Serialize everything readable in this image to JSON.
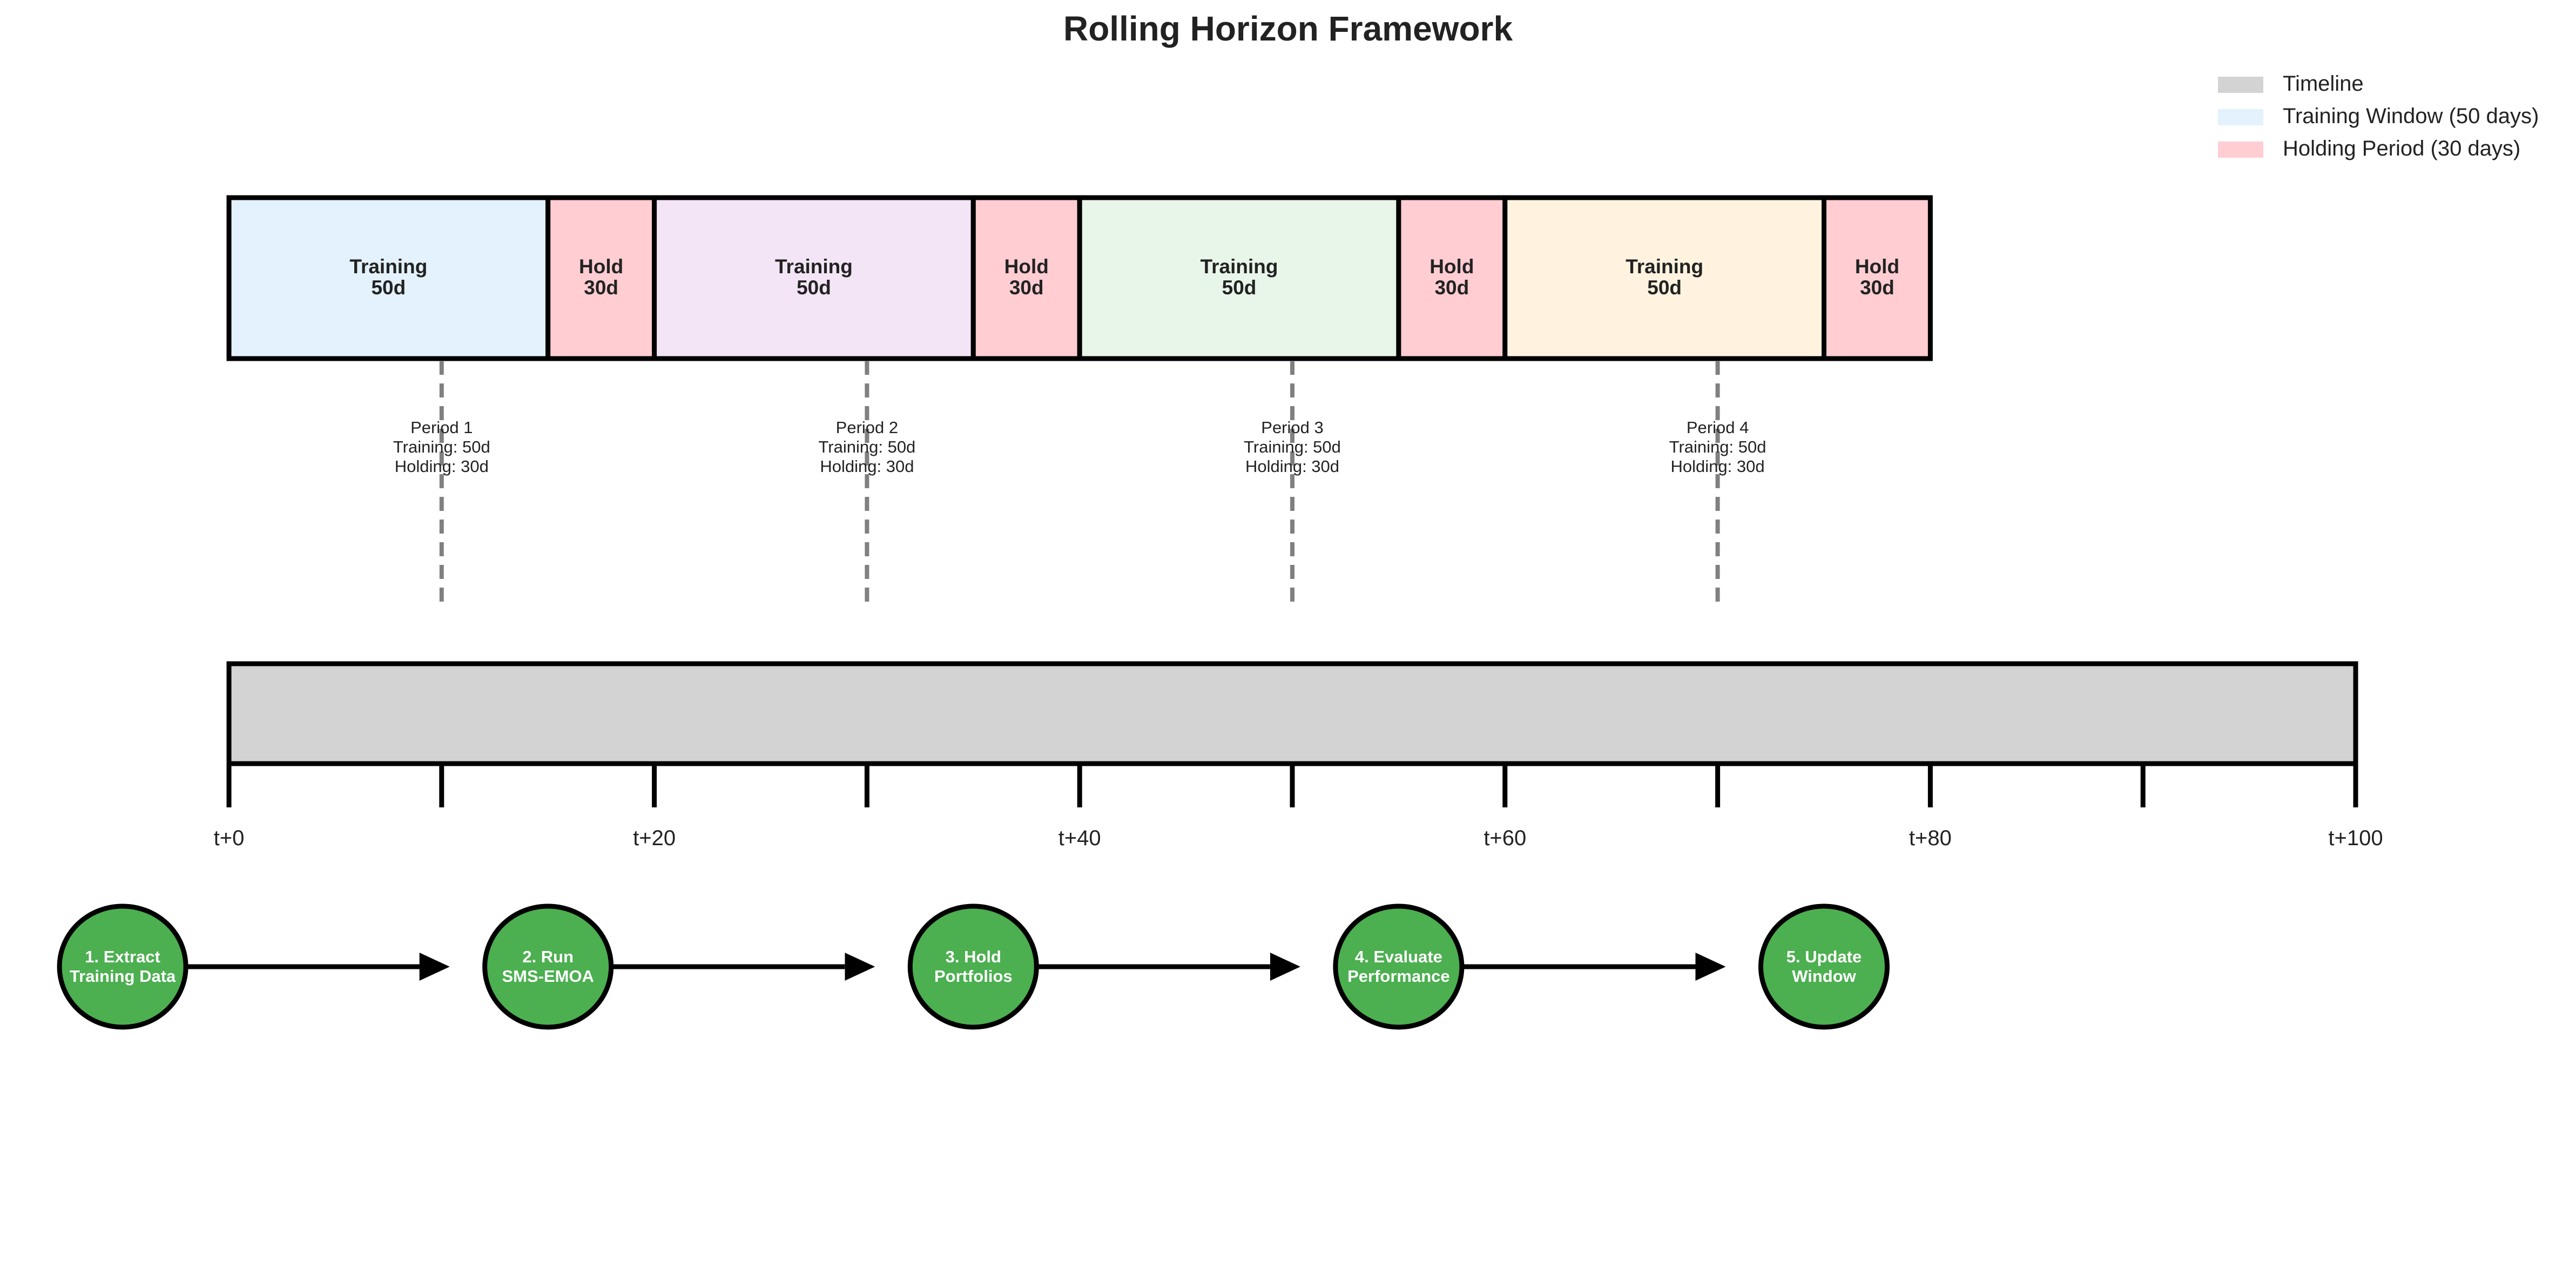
{
  "title": "Rolling Horizon Framework",
  "colors": {
    "timeline": "#d3d3d3",
    "training_window": "#e3f2fd",
    "holding_period": "#ffcdd2",
    "step_circle": "#4caf50",
    "dashed_line": "#808080",
    "stroke": "#000000"
  },
  "legend": {
    "position": "top-right",
    "items": [
      {
        "label": "Timeline",
        "color": "#d3d3d3"
      },
      {
        "label": "Training Window (50 days)",
        "color": "#e3f2fd"
      },
      {
        "label": "Holding Period (30 days)",
        "color": "#ffcdd2"
      }
    ]
  },
  "scale": {
    "min": 0,
    "max": 100
  },
  "blocks": [
    {
      "kind": "training",
      "start": 0,
      "end": 15,
      "line1": "Training",
      "line2": "50d",
      "color": "#e3f2fd"
    },
    {
      "kind": "hold",
      "start": 15,
      "end": 20,
      "line1": "Hold",
      "line2": "30d",
      "color": "#ffcdd2"
    },
    {
      "kind": "training",
      "start": 20,
      "end": 35,
      "line1": "Training",
      "line2": "50d",
      "color": "#f3e5f5"
    },
    {
      "kind": "hold",
      "start": 35,
      "end": 40,
      "line1": "Hold",
      "line2": "30d",
      "color": "#ffcdd2"
    },
    {
      "kind": "training",
      "start": 40,
      "end": 55,
      "line1": "Training",
      "line2": "50d",
      "color": "#e8f5e9"
    },
    {
      "kind": "hold",
      "start": 55,
      "end": 60,
      "line1": "Hold",
      "line2": "30d",
      "color": "#ffcdd2"
    },
    {
      "kind": "training",
      "start": 60,
      "end": 75,
      "line1": "Training",
      "line2": "50d",
      "color": "#fff3e0"
    },
    {
      "kind": "hold",
      "start": 75,
      "end": 80,
      "line1": "Hold",
      "line2": "30d",
      "color": "#ffcdd2"
    }
  ],
  "periods": [
    {
      "at": 10,
      "lines": [
        "Period 1",
        "Training: 50d",
        "Holding: 30d"
      ]
    },
    {
      "at": 30,
      "lines": [
        "Period 2",
        "Training: 50d",
        "Holding: 30d"
      ]
    },
    {
      "at": 50,
      "lines": [
        "Period 3",
        "Training: 50d",
        "Holding: 30d"
      ]
    },
    {
      "at": 70,
      "lines": [
        "Period 4",
        "Training: 50d",
        "Holding: 30d"
      ]
    }
  ],
  "timeline": {
    "start": 0,
    "end": 100,
    "ticks": [
      0,
      10,
      20,
      30,
      40,
      50,
      60,
      70,
      80,
      90,
      100
    ],
    "tick_labels": [
      {
        "at": 0,
        "label": "t+0"
      },
      {
        "at": 20,
        "label": "t+20"
      },
      {
        "at": 40,
        "label": "t+40"
      },
      {
        "at": 60,
        "label": "t+60"
      },
      {
        "at": 80,
        "label": "t+80"
      },
      {
        "at": 100,
        "label": "t+100"
      }
    ]
  },
  "steps": [
    {
      "at": -5,
      "lines": [
        "1. Extract",
        "Training Data"
      ]
    },
    {
      "at": 15,
      "lines": [
        "2. Run",
        "SMS-EMOA"
      ]
    },
    {
      "at": 35,
      "lines": [
        "3. Hold",
        "Portfolios"
      ]
    },
    {
      "at": 55,
      "lines": [
        "4. Evaluate",
        "Performance"
      ]
    },
    {
      "at": 75,
      "lines": [
        "5. Update",
        "Window"
      ]
    }
  ]
}
